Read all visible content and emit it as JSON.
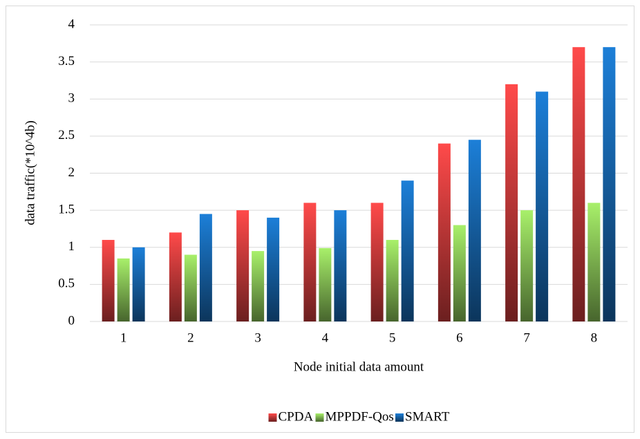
{
  "chart_data": {
    "type": "bar",
    "x_label": "Node initial data amount",
    "y_label": "data traffic(*10^4b)",
    "categories": [
      "1",
      "2",
      "3",
      "4",
      "5",
      "6",
      "7",
      "8"
    ],
    "series": [
      {
        "name": "CPDA",
        "color": "#ff4a4a",
        "values": [
          1.1,
          1.2,
          1.5,
          1.6,
          1.6,
          2.4,
          3.2,
          3.7
        ]
      },
      {
        "name": "MPPDF-Qos",
        "color": "#a8f06a",
        "values": [
          0.85,
          0.9,
          0.95,
          0.99,
          1.1,
          1.3,
          1.5,
          1.6
        ]
      },
      {
        "name": "SMART",
        "color": "#1c7fd8",
        "values": [
          1.0,
          1.45,
          1.4,
          1.5,
          1.9,
          2.45,
          3.1,
          3.7
        ]
      }
    ],
    "ylim": [
      0,
      4
    ],
    "yticks": [
      0,
      0.5,
      1,
      1.5,
      2,
      2.5,
      3,
      3.5,
      4
    ],
    "grid": true,
    "legend": "bottom"
  }
}
